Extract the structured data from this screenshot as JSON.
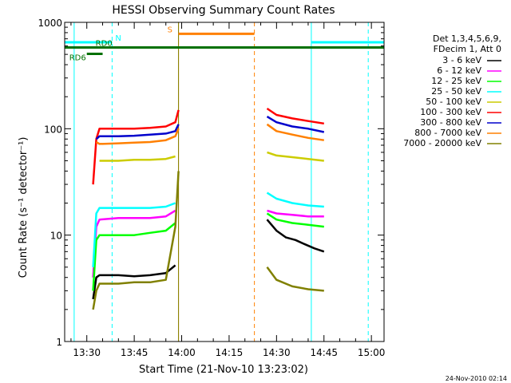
{
  "chart_data": {
    "type": "line",
    "title": "HESSI Observing Summary Count Rates",
    "xlabel": "Start Time (21-Nov-10 13:23:02)",
    "ylabel": "Count Rate (s⁻¹ detector⁻¹)",
    "yscale": "log",
    "ylim": [
      1,
      1000
    ],
    "xlim": [
      "13:23",
      "15:04"
    ],
    "grid": false,
    "x_ticks": [
      "13:30",
      "13:45",
      "14:00",
      "14:15",
      "14:30",
      "14:45",
      "15:00"
    ],
    "y_ticks": [
      "1",
      "10",
      "100",
      "1000"
    ],
    "timestamp": "24-Nov-2010 02:14",
    "legend": {
      "placement": "right",
      "header": [
        "Det 1,3,4,5,6,9,",
        "FDecim 1, Att 0"
      ],
      "entries": [
        {
          "label": "3 - 6 keV",
          "color": "#000000"
        },
        {
          "label": "6 - 12 keV",
          "color": "#ff00ff"
        },
        {
          "label": "12 - 25 keV",
          "color": "#00ff00"
        },
        {
          "label": "25 - 50 keV",
          "color": "#00ffff"
        },
        {
          "label": "50 - 100 keV",
          "color": "#cccc00"
        },
        {
          "label": "100 - 300 keV",
          "color": "#ff0000"
        },
        {
          "label": "300 - 800 keV",
          "color": "#0000cc"
        },
        {
          "label": "800 - 7000 keV",
          "color": "#ff8000"
        },
        {
          "label": "7000 - 20000 keV",
          "color": "#808000"
        }
      ]
    },
    "status_bars": [
      {
        "label": "N",
        "color": "#00ffff",
        "segments": [
          [
            "13:23",
            "13:38"
          ],
          [
            "14:41",
            "15:04"
          ]
        ],
        "value": 650
      },
      {
        "label": "S",
        "color": "#ff8000",
        "segments": [
          [
            "13:59",
            "14:23"
          ]
        ],
        "value": 780
      },
      {
        "label": "RD0",
        "color": "#007000",
        "segments": [
          [
            "13:23",
            "15:04"
          ]
        ],
        "value": 580
      },
      {
        "label": "RD6",
        "color": "#007000",
        "segments": [
          [
            "13:30",
            "13:35"
          ]
        ],
        "value": 505
      }
    ],
    "vertical_lines": [
      {
        "time": "13:26",
        "color": "#00ffff",
        "style": "solid"
      },
      {
        "time": "13:38",
        "color": "#00ffff",
        "style": "dashed"
      },
      {
        "time": "13:59",
        "color": "#ff8000",
        "style": "solid"
      },
      {
        "time": "13:59",
        "color": "#808000",
        "style": "solid"
      },
      {
        "time": "14:23",
        "color": "#ff8000",
        "style": "dashed"
      },
      {
        "time": "14:41",
        "color": "#00ffff",
        "style": "solid"
      },
      {
        "time": "14:59",
        "color": "#00ffff",
        "style": "dashed"
      }
    ],
    "series": [
      {
        "name": "3 - 6 keV",
        "color": "#000000",
        "segments": [
          {
            "x": [
              "13:32",
              "13:33",
              "13:34",
              "13:40",
              "13:45",
              "13:50",
              "13:55",
              "13:58"
            ],
            "y": [
              2.5,
              4.0,
              4.2,
              4.2,
              4.1,
              4.2,
              4.4,
              5.2
            ]
          },
          {
            "x": [
              "14:27",
              "14:30",
              "14:33",
              "14:36",
              "14:39",
              "14:42",
              "14:45"
            ],
            "y": [
              14,
              11,
              9.5,
              9,
              8.2,
              7.5,
              7.0
            ]
          }
        ]
      },
      {
        "name": "6 - 12 keV",
        "color": "#ff00ff",
        "segments": [
          {
            "x": [
              "13:32",
              "13:33",
              "13:34",
              "13:40",
              "13:45",
              "13:50",
              "13:55",
              "13:58"
            ],
            "y": [
              4,
              12,
              14,
              14.5,
              14.5,
              14.5,
              15,
              17
            ]
          },
          {
            "x": [
              "14:27",
              "14:30",
              "14:35",
              "14:40",
              "14:45"
            ],
            "y": [
              17,
              16,
              15.5,
              15,
              15
            ]
          }
        ]
      },
      {
        "name": "12 - 25 keV",
        "color": "#00ff00",
        "segments": [
          {
            "x": [
              "13:32",
              "13:33",
              "13:34",
              "13:40",
              "13:45",
              "13:50",
              "13:55",
              "13:58"
            ],
            "y": [
              3,
              9,
              10,
              10,
              10,
              10.5,
              11,
              13
            ]
          },
          {
            "x": [
              "14:27",
              "14:30",
              "14:35",
              "14:40",
              "14:45"
            ],
            "y": [
              16,
              14,
              13,
              12.5,
              12
            ]
          }
        ]
      },
      {
        "name": "25 - 50 keV",
        "color": "#00ffff",
        "segments": [
          {
            "x": [
              "13:32",
              "13:33",
              "13:34",
              "13:40",
              "13:45",
              "13:50",
              "13:55",
              "13:58"
            ],
            "y": [
              5,
              16,
              18,
              18,
              18,
              18,
              18.5,
              20
            ]
          },
          {
            "x": [
              "14:27",
              "14:30",
              "14:35",
              "14:40",
              "14:45"
            ],
            "y": [
              25,
              22,
              20,
              19,
              18.5
            ]
          }
        ]
      },
      {
        "name": "50 - 100 keV",
        "color": "#cccc00",
        "segments": [
          {
            "x": [
              "13:34",
              "13:40",
              "13:45",
              "13:50",
              "13:55",
              "13:58"
            ],
            "y": [
              50,
              50,
              51,
              51,
              52,
              55
            ]
          },
          {
            "x": [
              "14:27",
              "14:30",
              "14:35",
              "14:40",
              "14:45"
            ],
            "y": [
              60,
              56,
              54,
              52,
              50
            ]
          }
        ]
      },
      {
        "name": "100 - 300 keV",
        "color": "#ff0000",
        "segments": [
          {
            "x": [
              "13:32",
              "13:33",
              "13:34",
              "13:40",
              "13:45",
              "13:50",
              "13:55",
              "13:58",
              "13:59"
            ],
            "y": [
              30,
              80,
              100,
              100,
              100,
              102,
              105,
              115,
              150
            ]
          },
          {
            "x": [
              "14:27",
              "14:30",
              "14:35",
              "14:40",
              "14:45"
            ],
            "y": [
              155,
              135,
              125,
              118,
              112
            ]
          }
        ]
      },
      {
        "name": "300 - 800 keV",
        "color": "#0000cc",
        "segments": [
          {
            "x": [
              "13:33",
              "13:34",
              "13:40",
              "13:45",
              "13:50",
              "13:55",
              "13:58",
              "13:59"
            ],
            "y": [
              80,
              85,
              85,
              86,
              88,
              90,
              95,
              110
            ]
          },
          {
            "x": [
              "14:27",
              "14:30",
              "14:35",
              "14:40",
              "14:45"
            ],
            "y": [
              130,
              115,
              105,
              100,
              93
            ]
          }
        ]
      },
      {
        "name": "800 - 7000 keV",
        "color": "#ff8000",
        "segments": [
          {
            "x": [
              "13:33",
              "13:34",
              "13:40",
              "13:45",
              "13:50",
              "13:55",
              "13:58",
              "13:59"
            ],
            "y": [
              75,
              72,
              73,
              74,
              75,
              78,
              85,
              100
            ]
          },
          {
            "x": [
              "14:27",
              "14:30",
              "14:35",
              "14:40",
              "14:45"
            ],
            "y": [
              110,
              95,
              88,
              82,
              78
            ]
          }
        ]
      },
      {
        "name": "7000 - 20000 keV",
        "color": "#808000",
        "segments": [
          {
            "x": [
              "13:32",
              "13:33",
              "13:34",
              "13:40",
              "13:45",
              "13:50",
              "13:55",
              "13:58",
              "13:59"
            ],
            "y": [
              2,
              3,
              3.5,
              3.5,
              3.6,
              3.6,
              3.8,
              12,
              40
            ]
          },
          {
            "x": [
              "14:27",
              "14:30",
              "14:35",
              "14:40",
              "14:45"
            ],
            "y": [
              5,
              3.8,
              3.3,
              3.1,
              3.0
            ]
          }
        ]
      }
    ]
  }
}
